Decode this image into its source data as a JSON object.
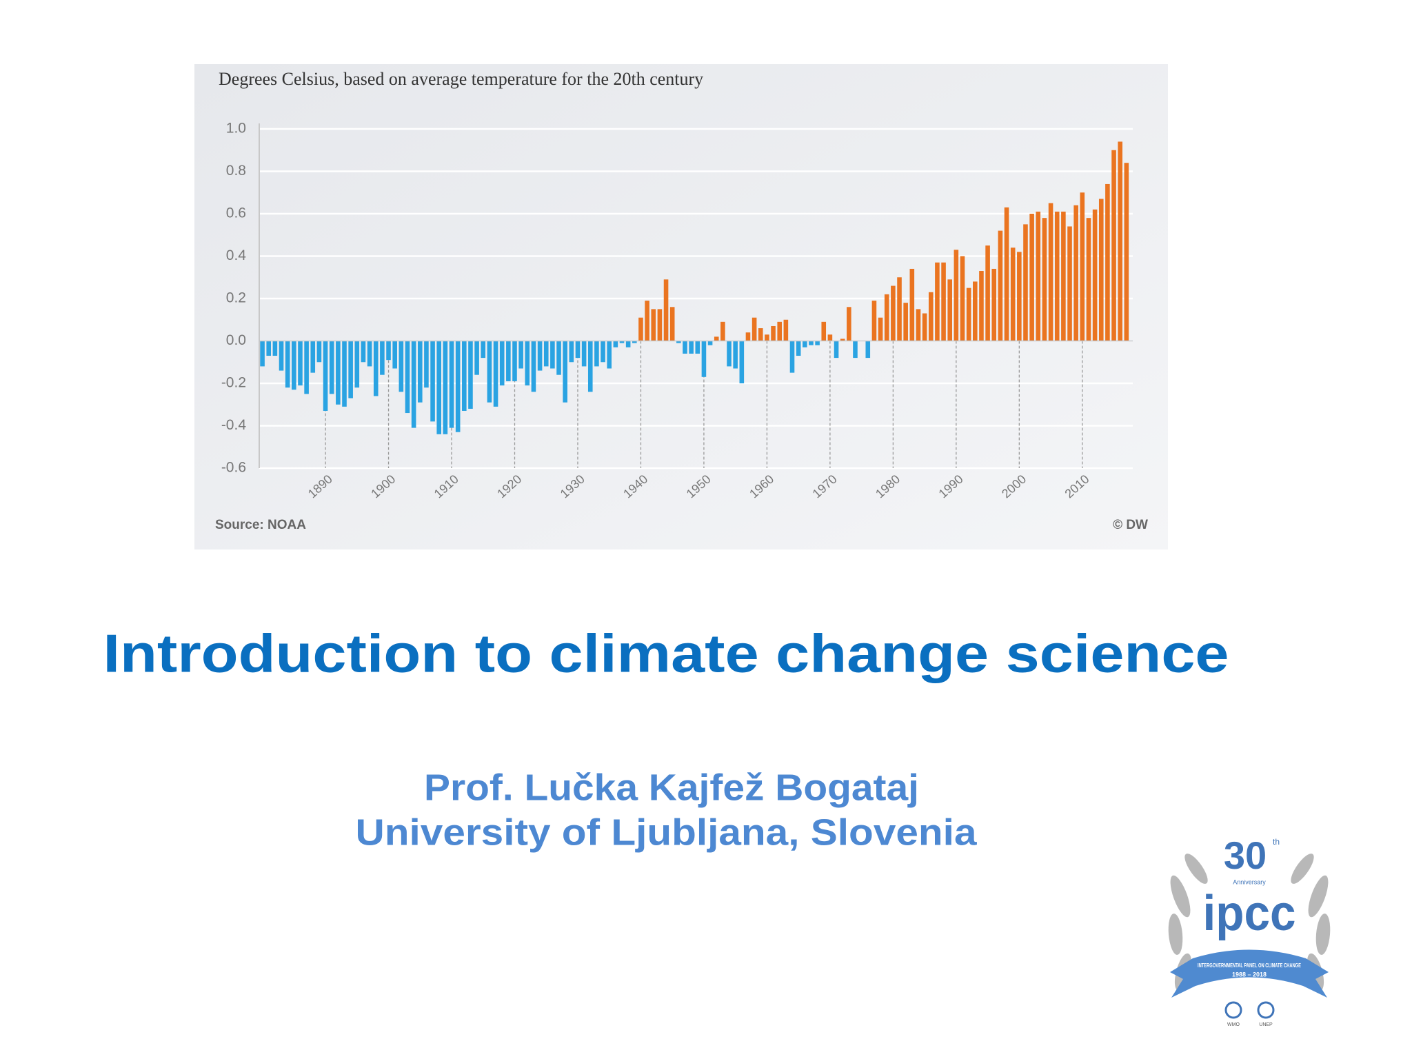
{
  "chart_data": {
    "type": "bar",
    "subtitle": "Degrees Celsius, based on average temperature for the 20th century",
    "source": "Source: NOAA",
    "credit": "© DW",
    "x": [
      1880,
      1881,
      1882,
      1883,
      1884,
      1885,
      1886,
      1887,
      1888,
      1889,
      1890,
      1891,
      1892,
      1893,
      1894,
      1895,
      1896,
      1897,
      1898,
      1899,
      1900,
      1901,
      1902,
      1903,
      1904,
      1905,
      1906,
      1907,
      1908,
      1909,
      1910,
      1911,
      1912,
      1913,
      1914,
      1915,
      1916,
      1917,
      1918,
      1919,
      1920,
      1921,
      1922,
      1923,
      1924,
      1925,
      1926,
      1927,
      1928,
      1929,
      1930,
      1931,
      1932,
      1933,
      1934,
      1935,
      1936,
      1937,
      1938,
      1939,
      1940,
      1941,
      1942,
      1943,
      1944,
      1945,
      1946,
      1947,
      1948,
      1949,
      1950,
      1951,
      1952,
      1953,
      1954,
      1955,
      1956,
      1957,
      1958,
      1959,
      1960,
      1961,
      1962,
      1963,
      1964,
      1965,
      1966,
      1967,
      1968,
      1969,
      1970,
      1971,
      1972,
      1973,
      1974,
      1975,
      1976,
      1977,
      1978,
      1979,
      1980,
      1981,
      1982,
      1983,
      1984,
      1985,
      1986,
      1987,
      1988,
      1989,
      1990,
      1991,
      1992,
      1993,
      1994,
      1995,
      1996,
      1997,
      1998,
      1999,
      2000,
      2001,
      2002,
      2003,
      2004,
      2005,
      2006,
      2007,
      2008,
      2009,
      2010,
      2011,
      2012,
      2013,
      2014,
      2015,
      2016,
      2017
    ],
    "values": [
      -0.12,
      -0.07,
      -0.07,
      -0.14,
      -0.22,
      -0.23,
      -0.21,
      -0.25,
      -0.15,
      -0.1,
      -0.33,
      -0.25,
      -0.3,
      -0.31,
      -0.27,
      -0.22,
      -0.1,
      -0.12,
      -0.26,
      -0.16,
      -0.09,
      -0.13,
      -0.24,
      -0.34,
      -0.41,
      -0.29,
      -0.22,
      -0.38,
      -0.44,
      -0.44,
      -0.41,
      -0.43,
      -0.33,
      -0.32,
      -0.16,
      -0.08,
      -0.29,
      -0.31,
      -0.21,
      -0.19,
      -0.19,
      -0.13,
      -0.21,
      -0.24,
      -0.14,
      -0.12,
      -0.13,
      -0.16,
      -0.29,
      -0.1,
      -0.08,
      -0.12,
      -0.24,
      -0.12,
      -0.1,
      -0.13,
      -0.03,
      -0.01,
      -0.03,
      -0.01,
      0.11,
      0.19,
      0.15,
      0.15,
      0.29,
      0.16,
      -0.01,
      -0.06,
      -0.06,
      -0.06,
      -0.17,
      -0.02,
      0.02,
      0.09,
      -0.12,
      -0.13,
      -0.2,
      0.04,
      0.11,
      0.06,
      0.03,
      0.07,
      0.09,
      0.1,
      -0.15,
      -0.07,
      -0.03,
      -0.02,
      -0.02,
      0.09,
      0.03,
      -0.08,
      0.01,
      0.16,
      -0.08,
      0.0,
      -0.08,
      0.19,
      0.11,
      0.22,
      0.26,
      0.3,
      0.18,
      0.34,
      0.15,
      0.13,
      0.23,
      0.37,
      0.37,
      0.29,
      0.43,
      0.4,
      0.25,
      0.28,
      0.33,
      0.45,
      0.34,
      0.52,
      0.63,
      0.44,
      0.42,
      0.55,
      0.6,
      0.61,
      0.58,
      0.65,
      0.61,
      0.61,
      0.54,
      0.64,
      0.7,
      0.58,
      0.62,
      0.67,
      0.74,
      0.9,
      0.94,
      0.84
    ],
    "positive_color": "#ea7420",
    "negative_color": "#2aa3e2",
    "xlim": [
      1879.5,
      2018
    ],
    "xticks": [
      1890,
      1900,
      1910,
      1920,
      1930,
      1940,
      1950,
      1960,
      1970,
      1980,
      1990,
      2000,
      2010
    ],
    "ylim": [
      -0.6,
      1.0
    ],
    "yticks": [
      {
        "value": 1.0,
        "label": "1.0"
      },
      0.8,
      0.6,
      0.4,
      0.2,
      {
        "value": 0,
        "label": "0.0"
      },
      -0.2,
      -0.4,
      -0.6
    ],
    "grid": true
  },
  "slide": {
    "title": "Introduction to climate change science",
    "author": "Prof. Lučka Kajfež Bogataj",
    "affiliation": "University of Ljubljana, Slovenia"
  },
  "logo": {
    "number": "30",
    "suffix": "th",
    "anniversary": "Anniversary",
    "name": "ipcc",
    "ribbon": "INTERGOVERNMENTAL PANEL ON CLIMATE CHANGE",
    "years": "1988 – 2018",
    "partner_1": "WMO",
    "partner_2": "UNEP"
  }
}
